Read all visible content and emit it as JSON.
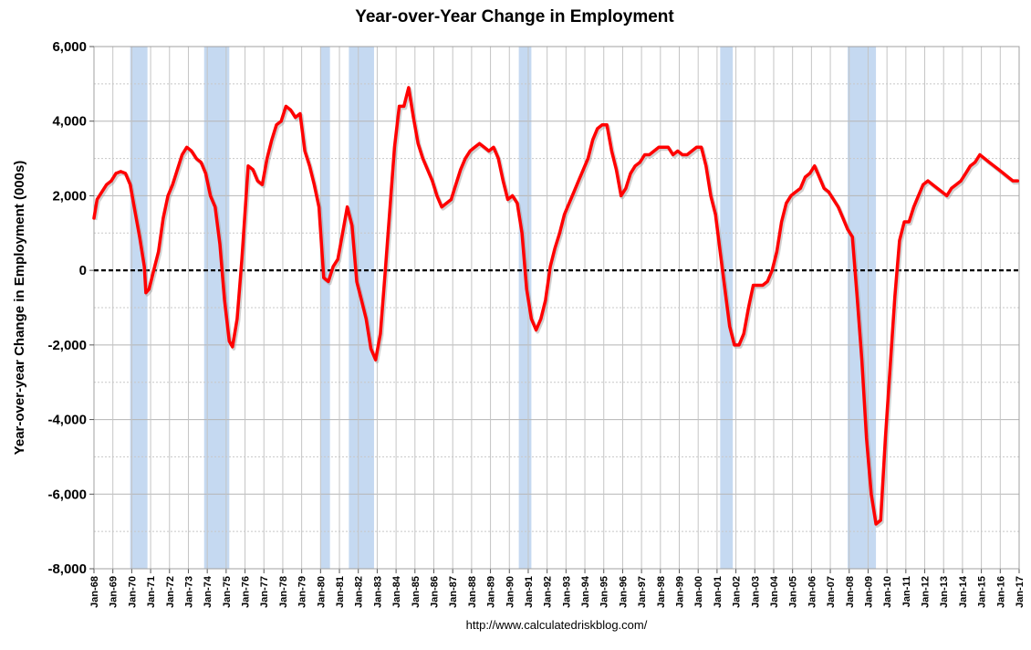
{
  "chart_data": {
    "type": "line",
    "title": "Year-over-Year Change in Employment",
    "ylabel": "Year-over-year Change in Employment (000s)",
    "xlabel": "",
    "source": "http://www.calculatedriskblog.com/",
    "ylim": [
      -8000,
      6000
    ],
    "y_ticks": [
      6000,
      4000,
      2000,
      0,
      -2000,
      -4000,
      -6000,
      -8000
    ],
    "y_tick_labels": [
      "6,000",
      "4,000",
      "2,000",
      "0",
      "-2,000",
      "-4,000",
      "-6,000",
      "-8,000"
    ],
    "xlim": [
      "1968-01",
      "2017-01"
    ],
    "x_tick_labels": [
      "Jan-68",
      "Jan-69",
      "Jan-70",
      "Jan-71",
      "Jan-72",
      "Jan-73",
      "Jan-74",
      "Jan-75",
      "Jan-76",
      "Jan-77",
      "Jan-78",
      "Jan-79",
      "Jan-80",
      "Jan-81",
      "Jan-82",
      "Jan-83",
      "Jan-84",
      "Jan-85",
      "Jan-86",
      "Jan-87",
      "Jan-88",
      "Jan-89",
      "Jan-90",
      "Jan-91",
      "Jan-92",
      "Jan-93",
      "Jan-94",
      "Jan-95",
      "Jan-96",
      "Jan-97",
      "Jan-98",
      "Jan-99",
      "Jan-00",
      "Jan-01",
      "Jan-02",
      "Jan-03",
      "Jan-04",
      "Jan-05",
      "Jan-06",
      "Jan-07",
      "Jan-08",
      "Jan-09",
      "Jan-10",
      "Jan-11",
      "Jan-12",
      "Jan-13",
      "Jan-14",
      "Jan-15",
      "Jan-16",
      "Jan-17"
    ],
    "grid": true,
    "line_color": "#ff0000",
    "recession_color": "#c5d9f1",
    "recessions": [
      [
        "1969-12",
        "1970-11"
      ],
      [
        "1973-11",
        "1975-03"
      ],
      [
        "1980-01",
        "1980-07"
      ],
      [
        "1981-07",
        "1982-11"
      ],
      [
        "1990-07",
        "1991-03"
      ],
      [
        "2001-03",
        "2001-11"
      ],
      [
        "2007-12",
        "2009-06"
      ]
    ],
    "series": [
      {
        "x": [
          "1968-01",
          "1968-03",
          "1968-06",
          "1968-09",
          "1968-12",
          "1969-03",
          "1969-06",
          "1969-09",
          "1969-12",
          "1970-03",
          "1970-06",
          "1970-09",
          "1970-10",
          "1970-12",
          "1971-03",
          "1971-06",
          "1971-09",
          "1971-12",
          "1972-03",
          "1972-06",
          "1972-09",
          "1972-12",
          "1973-03",
          "1973-06",
          "1973-09",
          "1973-12",
          "1974-03",
          "1974-06",
          "1974-09",
          "1974-12",
          "1975-03",
          "1975-05",
          "1975-08",
          "1975-11",
          "1976-03",
          "1976-06",
          "1976-09",
          "1976-12",
          "1977-03",
          "1977-06",
          "1977-09",
          "1977-12",
          "1978-03",
          "1978-06",
          "1978-09",
          "1978-12",
          "1979-03",
          "1979-06",
          "1979-09",
          "1979-12",
          "1980-03",
          "1980-06",
          "1980-09",
          "1980-12",
          "1981-03",
          "1981-06",
          "1981-09",
          "1981-12",
          "1982-03",
          "1982-06",
          "1982-09",
          "1982-12",
          "1983-03",
          "1983-06",
          "1983-09",
          "1983-12",
          "1984-03",
          "1984-06",
          "1984-09",
          "1984-12",
          "1985-03",
          "1985-06",
          "1985-09",
          "1985-12",
          "1986-03",
          "1986-06",
          "1986-09",
          "1986-12",
          "1987-03",
          "1987-06",
          "1987-09",
          "1987-12",
          "1988-03",
          "1988-06",
          "1988-09",
          "1988-12",
          "1989-03",
          "1989-06",
          "1989-09",
          "1989-12",
          "1990-03",
          "1990-06",
          "1990-09",
          "1990-12",
          "1991-03",
          "1991-06",
          "1991-09",
          "1991-12",
          "1992-03",
          "1992-06",
          "1992-09",
          "1992-12",
          "1993-03",
          "1993-06",
          "1993-09",
          "1993-12",
          "1994-03",
          "1994-06",
          "1994-09",
          "1994-12",
          "1995-03",
          "1995-06",
          "1995-09",
          "1995-12",
          "1996-03",
          "1996-06",
          "1996-09",
          "1996-12",
          "1997-03",
          "1997-06",
          "1997-09",
          "1997-12",
          "1998-03",
          "1998-06",
          "1998-09",
          "1998-12",
          "1999-03",
          "1999-06",
          "1999-09",
          "1999-12",
          "2000-03",
          "2000-06",
          "2000-09",
          "2000-12",
          "2001-03",
          "2001-06",
          "2001-09",
          "2001-12",
          "2002-03",
          "2002-06",
          "2002-09",
          "2002-12",
          "2003-03",
          "2003-06",
          "2003-09",
          "2003-12",
          "2004-03",
          "2004-06",
          "2004-09",
          "2004-12",
          "2005-03",
          "2005-06",
          "2005-09",
          "2005-12",
          "2006-03",
          "2006-06",
          "2006-09",
          "2006-12",
          "2007-03",
          "2007-06",
          "2007-09",
          "2007-12",
          "2008-03",
          "2008-06",
          "2008-09",
          "2008-12",
          "2009-03",
          "2009-06",
          "2009-09",
          "2009-12",
          "2010-03",
          "2010-06",
          "2010-09",
          "2010-12",
          "2011-03",
          "2011-06",
          "2011-09",
          "2011-12",
          "2012-03",
          "2012-06",
          "2012-09",
          "2012-12",
          "2013-03",
          "2013-06",
          "2013-09",
          "2013-12",
          "2014-03",
          "2014-06",
          "2014-09",
          "2014-12",
          "2015-03",
          "2015-06",
          "2015-09",
          "2015-12",
          "2016-03",
          "2016-06",
          "2016-09",
          "2016-12"
        ],
        "values": [
          1400,
          1900,
          2100,
          2300,
          2400,
          2600,
          2650,
          2600,
          2300,
          1600,
          900,
          100,
          -600,
          -500,
          0,
          500,
          1400,
          2000,
          2300,
          2700,
          3100,
          3300,
          3200,
          3000,
          2900,
          2600,
          2000,
          1700,
          700,
          -800,
          -1900,
          -2050,
          -1300,
          300,
          2800,
          2700,
          2400,
          2300,
          3000,
          3500,
          3900,
          4000,
          4400,
          4300,
          4100,
          4200,
          3200,
          2800,
          2300,
          1700,
          -200,
          -300,
          100,
          300,
          1000,
          1700,
          1200,
          -300,
          -800,
          -1300,
          -2100,
          -2400,
          -1700,
          -100,
          1600,
          3300,
          4400,
          4400,
          4900,
          4100,
          3400,
          3000,
          2700,
          2400,
          2000,
          1700,
          1800,
          1900,
          2300,
          2700,
          3000,
          3200,
          3300,
          3400,
          3300,
          3200,
          3300,
          3000,
          2400,
          1900,
          2000,
          1800,
          1000,
          -500,
          -1300,
          -1600,
          -1300,
          -800,
          100,
          600,
          1000,
          1500,
          1800,
          2100,
          2400,
          2700,
          3000,
          3500,
          3800,
          3900,
          3900,
          3200,
          2700,
          2000,
          2200,
          2600,
          2800,
          2900,
          3100,
          3100,
          3200,
          3300,
          3300,
          3300,
          3100,
          3200,
          3100,
          3100,
          3200,
          3300,
          3300,
          2800,
          2000,
          1500,
          500,
          -500,
          -1500,
          -2000,
          -2000,
          -1700,
          -1000,
          -400,
          -400,
          -400,
          -300,
          0,
          500,
          1300,
          1800,
          2000,
          2100,
          2200,
          2500,
          2600,
          2800,
          2500,
          2200,
          2100,
          1900,
          1700,
          1400,
          1100,
          900,
          -700,
          -2400,
          -4500,
          -6000,
          -6800,
          -6700,
          -4500,
          -2600,
          -700,
          800,
          1300,
          1300,
          1700,
          2000,
          2300,
          2400,
          2300,
          2200,
          2100,
          2000,
          2200,
          2300,
          2400,
          2600,
          2800,
          2900,
          3100,
          3000,
          2900,
          2800,
          2700,
          2600,
          2500,
          2400,
          2400
        ]
      }
    ]
  }
}
